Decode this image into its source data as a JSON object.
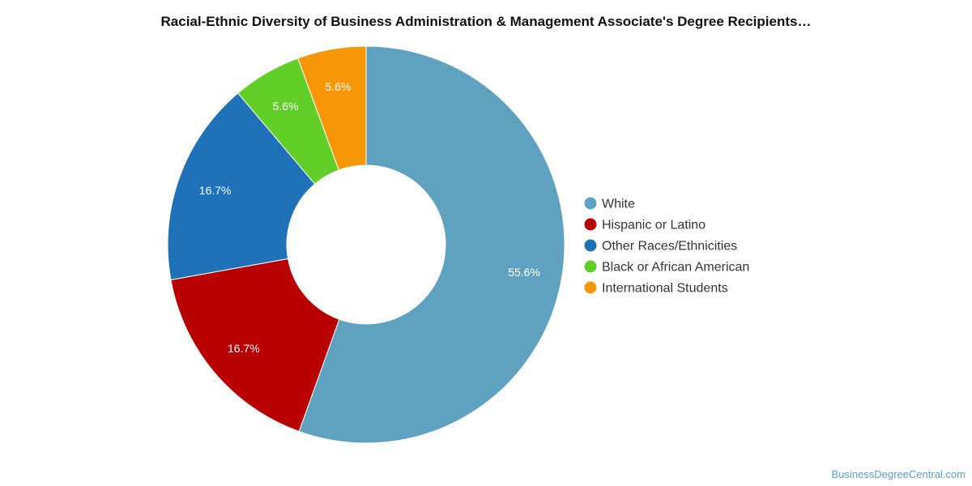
{
  "chart_data": {
    "type": "pie",
    "title": "Racial-Ethnic Diversity of Business Administration & Management Associate's Degree Recipients…",
    "donut": true,
    "legend_position": "right",
    "categories": [
      "White",
      "Hispanic or Latino",
      "Other Races/Ethnicities",
      "Black or African American",
      "International Students"
    ],
    "values": [
      55.6,
      16.7,
      16.7,
      5.6,
      5.6
    ],
    "value_labels": [
      "55.6%",
      "16.7%",
      "16.7%",
      "5.6%",
      "5.6%"
    ],
    "colors": [
      "#5ea2c0",
      "#b80000",
      "#1f72b8",
      "#62cf28",
      "#f79707"
    ]
  },
  "watermark": "BusinessDegreeCentral.com"
}
